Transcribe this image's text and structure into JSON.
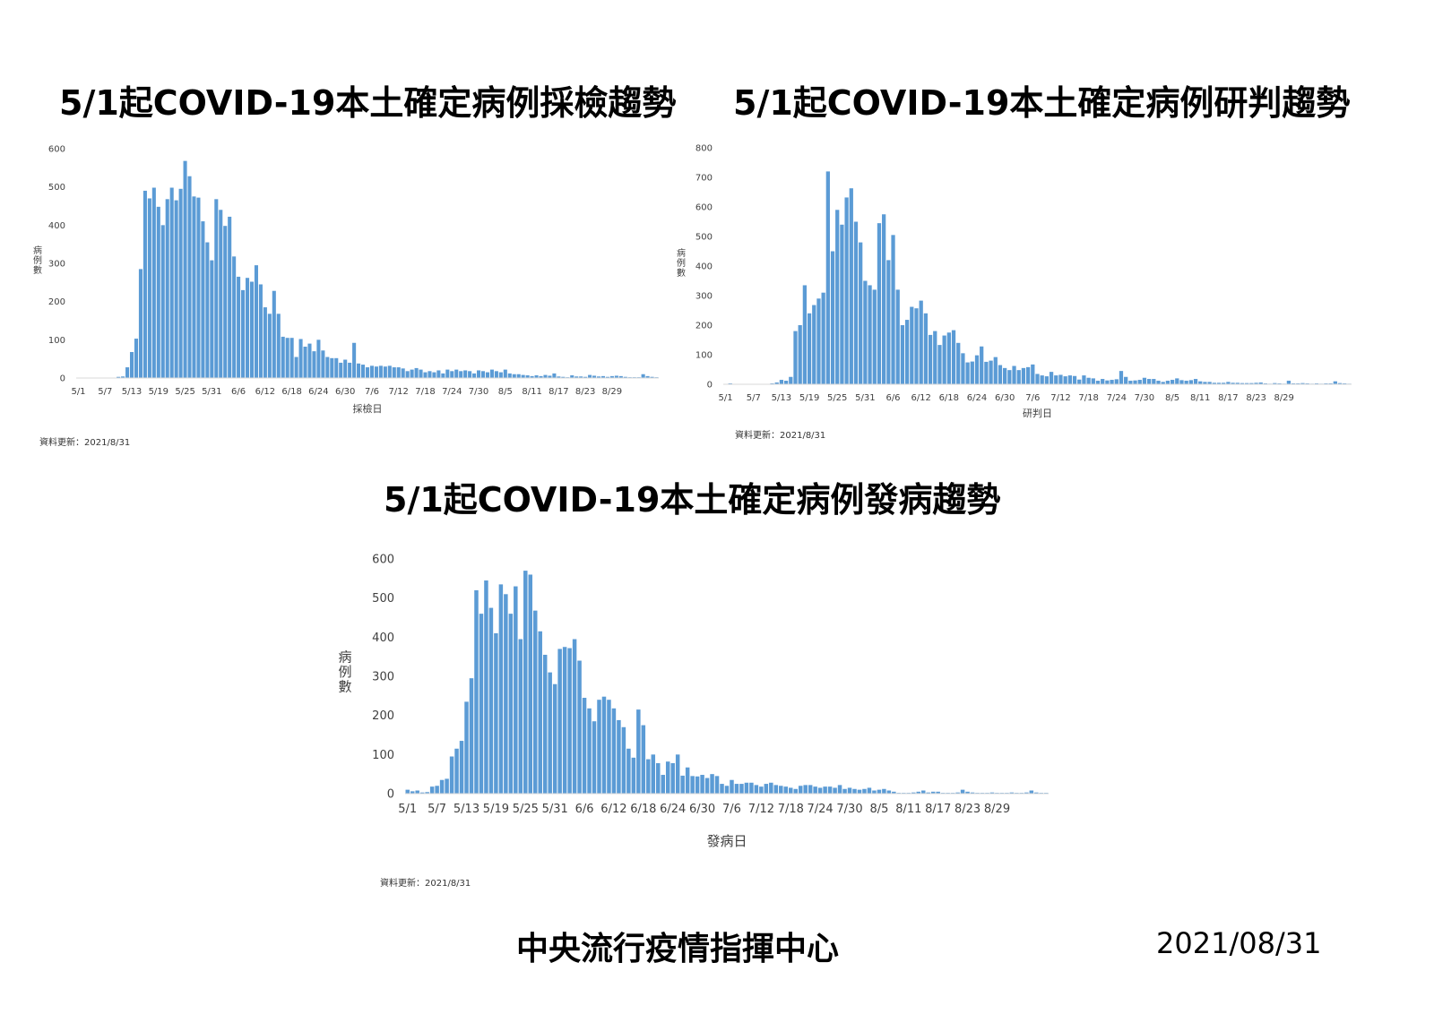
{
  "footer": {
    "org": "中央流行疫情指揮中心",
    "date": "2021/08/31"
  },
  "chart_data": [
    {
      "type": "bar",
      "title": "5/1起COVID-19本土確定病例採檢趨勢",
      "xlabel": "採檢日",
      "ylabel": "病例數",
      "update_note": "資料更新：2021/8/31",
      "ylim": [
        0,
        600
      ],
      "yticks": [
        0,
        100,
        200,
        300,
        400,
        500,
        600
      ],
      "tick_labels": [
        "5/1",
        "5/7",
        "5/13",
        "5/19",
        "5/25",
        "5/31",
        "6/6",
        "6/12",
        "6/18",
        "6/24",
        "6/30",
        "7/6",
        "7/12",
        "7/18",
        "7/24",
        "7/30",
        "8/5",
        "8/11",
        "8/17",
        "8/23",
        "8/29"
      ],
      "tick_every": 6,
      "color": "#5B9BD5",
      "grid": false,
      "values": [
        0,
        0,
        0,
        0,
        0,
        0,
        0,
        0,
        0,
        3,
        4,
        28,
        68,
        103,
        285,
        490,
        470,
        498,
        448,
        400,
        468,
        498,
        465,
        495,
        568,
        528,
        475,
        472,
        410,
        355,
        308,
        468,
        440,
        398,
        422,
        318,
        265,
        230,
        262,
        252,
        295,
        245,
        185,
        168,
        228,
        168,
        108,
        105,
        105,
        55,
        102,
        82,
        90,
        70,
        100,
        72,
        55,
        52,
        52,
        40,
        48,
        40,
        92,
        38,
        35,
        28,
        32,
        30,
        32,
        30,
        32,
        28,
        28,
        25,
        18,
        22,
        26,
        22,
        15,
        18,
        15,
        20,
        12,
        22,
        18,
        22,
        18,
        20,
        18,
        12,
        20,
        18,
        15,
        22,
        18,
        15,
        22,
        12,
        10,
        10,
        8,
        7,
        5,
        7,
        5,
        8,
        6,
        12,
        4,
        3,
        2,
        7,
        4,
        4,
        3,
        8,
        6,
        4,
        5,
        3,
        5,
        6,
        5,
        3,
        2,
        2,
        2,
        10,
        5,
        3,
        2
      ]
    },
    {
      "type": "bar",
      "title": "5/1起COVID-19本土確定病例研判趨勢",
      "xlabel": "研判日",
      "ylabel": "病例數",
      "update_note": "資料更新：2021/8/31",
      "ylim": [
        0,
        800
      ],
      "yticks": [
        0,
        100,
        200,
        300,
        400,
        500,
        600,
        700,
        800
      ],
      "tick_labels": [
        "5/1",
        "5/7",
        "5/13",
        "5/19",
        "5/25",
        "5/31",
        "6/6",
        "6/12",
        "6/18",
        "6/24",
        "6/30",
        "7/6",
        "7/12",
        "7/18",
        "7/24",
        "7/30",
        "8/5",
        "8/11",
        "8/17",
        "8/23",
        "8/29"
      ],
      "tick_every": 6,
      "color": "#5B9BD5",
      "grid": false,
      "values": [
        0,
        3,
        0,
        0,
        0,
        0,
        0,
        0,
        0,
        0,
        3,
        6,
        15,
        12,
        25,
        180,
        200,
        335,
        240,
        268,
        290,
        310,
        720,
        450,
        590,
        540,
        632,
        663,
        550,
        480,
        350,
        335,
        320,
        545,
        575,
        420,
        505,
        320,
        200,
        218,
        262,
        257,
        283,
        240,
        167,
        180,
        133,
        165,
        175,
        183,
        140,
        105,
        74,
        77,
        98,
        128,
        76,
        80,
        92,
        65,
        55,
        48,
        62,
        48,
        55,
        58,
        67,
        35,
        30,
        27,
        42,
        30,
        32,
        27,
        30,
        28,
        16,
        30,
        22,
        20,
        12,
        18,
        13,
        15,
        17,
        45,
        25,
        12,
        13,
        15,
        22,
        18,
        18,
        12,
        8,
        12,
        15,
        20,
        14,
        12,
        14,
        18,
        10,
        8,
        8,
        5,
        5,
        5,
        8,
        5,
        5,
        4,
        4,
        4,
        5,
        6,
        3,
        2,
        4,
        3,
        2,
        12,
        3,
        3,
        4,
        3,
        2,
        3,
        2,
        3,
        3,
        10,
        4,
        3,
        2
      ]
    },
    {
      "type": "bar",
      "title": "5/1起COVID-19本土確定病例發病趨勢",
      "xlabel": "發病日",
      "ylabel": "病例數",
      "update_note": "資料更新：2021/8/31",
      "ylim": [
        0,
        600
      ],
      "yticks": [
        0,
        100,
        200,
        300,
        400,
        500,
        600
      ],
      "tick_labels": [
        "5/1",
        "5/7",
        "5/13",
        "5/19",
        "5/25",
        "5/31",
        "6/6",
        "6/12",
        "6/18",
        "6/24",
        "6/30",
        "7/6",
        "7/12",
        "7/18",
        "7/24",
        "7/30",
        "8/5",
        "8/11",
        "8/17",
        "8/23",
        "8/29"
      ],
      "tick_every": 6,
      "color": "#5B9BD5",
      "grid": false,
      "values": [
        10,
        6,
        8,
        3,
        4,
        18,
        20,
        35,
        38,
        95,
        115,
        135,
        235,
        295,
        520,
        460,
        545,
        475,
        410,
        535,
        510,
        460,
        530,
        395,
        570,
        560,
        468,
        415,
        355,
        310,
        280,
        370,
        375,
        372,
        395,
        340,
        245,
        218,
        185,
        240,
        248,
        240,
        218,
        188,
        170,
        115,
        92,
        215,
        175,
        88,
        100,
        78,
        48,
        82,
        78,
        100,
        46,
        67,
        45,
        44,
        48,
        40,
        50,
        45,
        25,
        20,
        35,
        25,
        25,
        28,
        28,
        22,
        18,
        25,
        28,
        22,
        20,
        18,
        15,
        12,
        20,
        22,
        22,
        18,
        15,
        18,
        18,
        15,
        22,
        12,
        15,
        12,
        10,
        12,
        15,
        8,
        10,
        12,
        8,
        5,
        2,
        2,
        2,
        3,
        5,
        8,
        3,
        5,
        5,
        2,
        2,
        2,
        3,
        10,
        5,
        3,
        2,
        2,
        2,
        3,
        2,
        2,
        2,
        3,
        2,
        2,
        3,
        8,
        3,
        2,
        2
      ]
    }
  ]
}
